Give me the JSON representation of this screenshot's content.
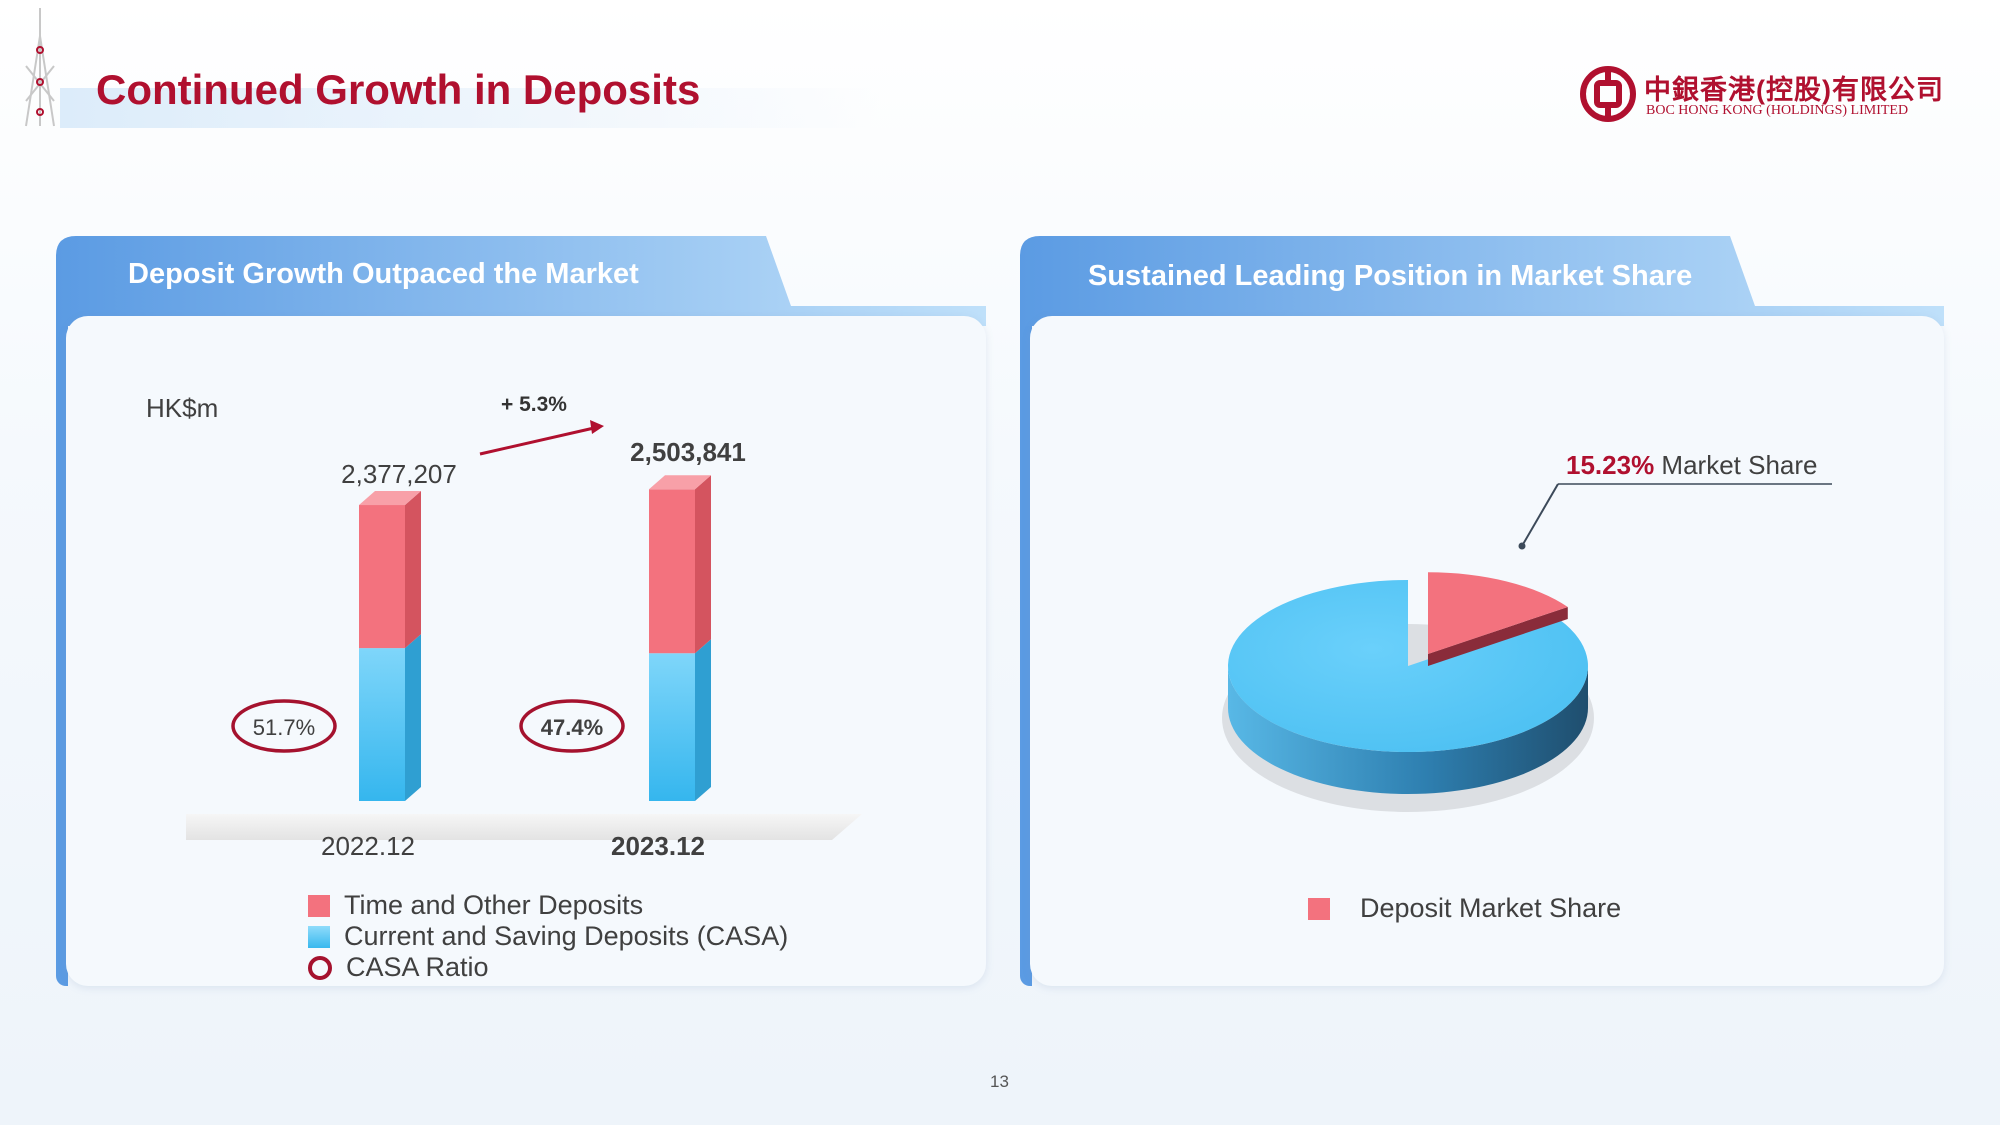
{
  "page": {
    "title": "Continued Growth in Deposits",
    "page_number": "13"
  },
  "logo": {
    "chinese_name": "中銀香港(控股)有限公司",
    "english_name": "BOC HONG KONG (HOLDINGS) LIMITED"
  },
  "left_panel": {
    "title": "Deposit Growth Outpaced the Market",
    "unit": "HK$m",
    "growth_label": "+ 5.3%",
    "legend": {
      "time_deposits": "Time and Other Deposits",
      "casa": "Current and Saving Deposits (CASA)",
      "casa_ratio": "CASA Ratio"
    }
  },
  "right_panel": {
    "title": "Sustained Leading Position in Market Share",
    "callout_value": "15.23%",
    "callout_text": "Market Share",
    "legend_label": "Deposit Market Share"
  },
  "colors": {
    "brand_red": "#b0102f",
    "time_deposits": "#f3727e",
    "casa": "#5bc8f5",
    "header_blue": "#5b9be3"
  },
  "chart_data": [
    {
      "type": "bar",
      "stacked": true,
      "categories": [
        "2022.12",
        "2023.12"
      ],
      "totals": [
        2377207,
        2503841
      ],
      "total_labels": [
        "2,377,207",
        "2,503,841"
      ],
      "series": [
        {
          "name": "Current and Saving Deposits (CASA)",
          "values": [
            1228015,
            1186821
          ]
        },
        {
          "name": "Time and Other Deposits",
          "values": [
            1149192,
            1317020
          ]
        }
      ],
      "casa_ratio": [
        51.7,
        47.4
      ],
      "casa_ratio_labels": [
        "51.7%",
        "47.4%"
      ],
      "growth": "+ 5.3%",
      "ylabel": "HK$m"
    },
    {
      "type": "pie",
      "slices": [
        {
          "name": "Deposit Market Share",
          "value": 15.23,
          "highlighted": true
        },
        {
          "name": "",
          "value": 84.77,
          "highlighted": false
        }
      ],
      "annotation": "15.23% Market Share"
    }
  ]
}
